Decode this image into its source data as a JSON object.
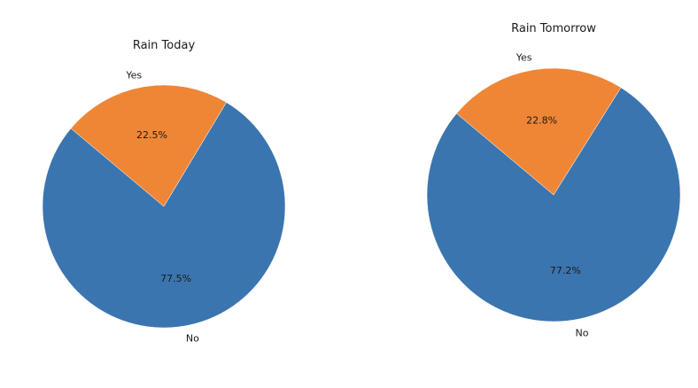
{
  "chart_data": [
    {
      "type": "pie",
      "title": "Rain Today",
      "labels": [
        "No",
        "Yes"
      ],
      "values": [
        77.5,
        22.5
      ],
      "value_labels": [
        "77.5%",
        "22.5%"
      ],
      "colors": [
        "#3b75af",
        "#ef8636"
      ],
      "start_angle_deg": 140,
      "direction": "counterclockwise"
    },
    {
      "type": "pie",
      "title": "Rain Tomorrow",
      "labels": [
        "No",
        "Yes"
      ],
      "values": [
        77.2,
        22.8
      ],
      "value_labels": [
        "77.2%",
        "22.8%"
      ],
      "colors": [
        "#3b75af",
        "#ef8636"
      ],
      "start_angle_deg": 140,
      "direction": "counterclockwise"
    }
  ]
}
